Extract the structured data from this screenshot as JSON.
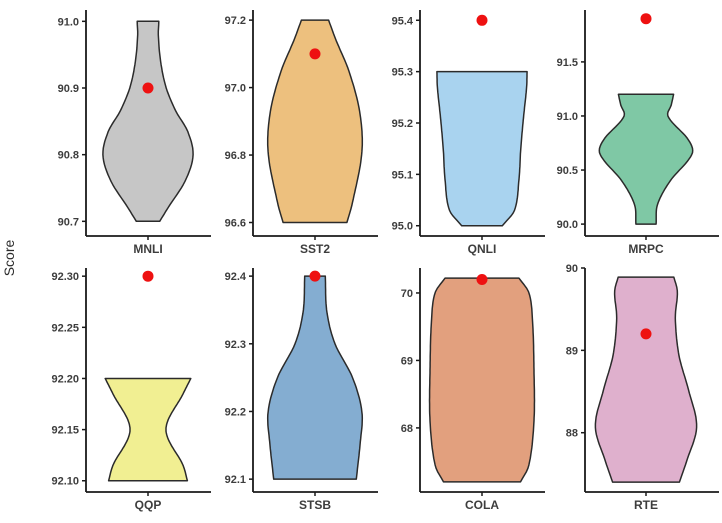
{
  "figure": {
    "ylabel": "Score",
    "dot_color": "#ee1111",
    "axis_color": "#1a1a1a",
    "violin_stroke": "#2b2b2b",
    "text_color": "#3d3d3d",
    "background": "#ffffff"
  },
  "chart_data": {
    "type": "violin",
    "title": "",
    "xlabel": "",
    "ylabel": "Score",
    "legend": "none",
    "grid": false,
    "layout": "2 rows x 4 columns, free y-scales per panel",
    "categories": [
      "MNLI",
      "SST2",
      "QNLI",
      "MRPC",
      "QQP",
      "STSB",
      "COLA",
      "RTE"
    ],
    "dot_values": [
      90.9,
      97.1,
      95.4,
      91.9,
      92.3,
      92.4,
      70.2,
      89.2
    ],
    "panels": [
      {
        "task": "MNLI",
        "color": "#c6c6c6",
        "domain": [
          90.678,
          91.017
        ],
        "ticks": [
          {
            "value": 91.0,
            "label": "91.0"
          },
          {
            "value": 90.9,
            "label": "90.9"
          },
          {
            "value": 90.8,
            "label": "90.8"
          },
          {
            "value": 90.7,
            "label": "90.7"
          }
        ],
        "violin_range": [
          90.7,
          91.0
        ],
        "profile": [
          [
            0,
            0.26
          ],
          [
            0.07,
            0.45
          ],
          [
            0.2,
            0.82
          ],
          [
            0.33,
            1.0
          ],
          [
            0.45,
            0.88
          ],
          [
            0.55,
            0.62
          ],
          [
            0.67,
            0.4
          ],
          [
            0.8,
            0.28
          ],
          [
            0.93,
            0.23
          ],
          [
            1,
            0.24
          ]
        ],
        "relative_width": 0.98,
        "dot_value": 90.9
      },
      {
        "task": "SST2",
        "color": "#edc07e",
        "domain": [
          96.56,
          97.23
        ],
        "ticks": [
          {
            "value": 97.2,
            "label": "97.2"
          },
          {
            "value": 97.0,
            "label": "97.0"
          },
          {
            "value": 96.8,
            "label": "96.8"
          },
          {
            "value": 96.6,
            "label": "96.6"
          }
        ],
        "violin_range": [
          96.6,
          97.2
        ],
        "profile": [
          [
            0,
            0.68
          ],
          [
            0.1,
            0.8
          ],
          [
            0.35,
            1.0
          ],
          [
            0.55,
            0.95
          ],
          [
            0.75,
            0.72
          ],
          [
            0.9,
            0.45
          ],
          [
            1,
            0.29
          ]
        ],
        "relative_width": 1.02,
        "dot_value": 97.1
      },
      {
        "task": "QNLI",
        "color": "#a9d3ef",
        "domain": [
          94.98,
          95.42
        ],
        "ticks": [
          {
            "value": 95.4,
            "label": "95.4"
          },
          {
            "value": 95.3,
            "label": "95.3"
          },
          {
            "value": 95.2,
            "label": "95.2"
          },
          {
            "value": 95.1,
            "label": "95.1"
          },
          {
            "value": 95.0,
            "label": "95.0"
          }
        ],
        "violin_range": [
          95.0,
          95.3
        ],
        "profile": [
          [
            0,
            0.45
          ],
          [
            0.1,
            0.72
          ],
          [
            0.3,
            0.82
          ],
          [
            0.5,
            0.86
          ],
          [
            0.7,
            0.92
          ],
          [
            0.9,
            0.99
          ],
          [
            1,
            1.0
          ]
        ],
        "relative_width": 0.98,
        "dot_value": 95.4
      },
      {
        "task": "MRPC",
        "color": "#7fc8a5",
        "domain": [
          89.89,
          91.98
        ],
        "ticks": [
          {
            "value": 91.5,
            "label": "91.5"
          },
          {
            "value": 91.0,
            "label": "91.0"
          },
          {
            "value": 90.5,
            "label": "90.5"
          },
          {
            "value": 90.0,
            "label": "90.0"
          }
        ],
        "violin_range": [
          90.0,
          91.2
        ],
        "profile": [
          [
            0,
            0.22
          ],
          [
            0.15,
            0.25
          ],
          [
            0.33,
            0.52
          ],
          [
            0.54,
            1.0
          ],
          [
            0.65,
            0.92
          ],
          [
            0.83,
            0.48
          ],
          [
            0.92,
            0.55
          ],
          [
            1,
            0.6
          ]
        ],
        "relative_width": 1.0,
        "dot_value": 91.9
      },
      {
        "task": "QQP",
        "color": "#f1ef92",
        "domain": [
          92.089,
          92.308
        ],
        "ticks": [
          {
            "value": 92.3,
            "label": "92.30"
          },
          {
            "value": 92.25,
            "label": "92.25"
          },
          {
            "value": 92.2,
            "label": "92.20"
          },
          {
            "value": 92.15,
            "label": "92.15"
          },
          {
            "value": 92.1,
            "label": "92.10"
          }
        ],
        "violin_range": [
          92.1,
          92.2
        ],
        "profile": [
          [
            0,
            0.92
          ],
          [
            0.15,
            0.82
          ],
          [
            0.5,
            0.42
          ],
          [
            0.85,
            0.82
          ],
          [
            1,
            1.0
          ]
        ],
        "relative_width": 0.93,
        "dot_value": 92.3
      },
      {
        "task": "STSB",
        "color": "#84add1",
        "domain": [
          92.081,
          92.412
        ],
        "ticks": [
          {
            "value": 92.4,
            "label": "92.4"
          },
          {
            "value": 92.3,
            "label": "92.3"
          },
          {
            "value": 92.2,
            "label": "92.2"
          },
          {
            "value": 92.1,
            "label": "92.1"
          }
        ],
        "violin_range": [
          92.1,
          92.4
        ],
        "profile": [
          [
            0,
            0.88
          ],
          [
            0.17,
            0.96
          ],
          [
            0.33,
            1.0
          ],
          [
            0.5,
            0.8
          ],
          [
            0.67,
            0.42
          ],
          [
            0.83,
            0.25
          ],
          [
            1,
            0.22
          ]
        ],
        "relative_width": 1.02,
        "dot_value": 92.4
      },
      {
        "task": "COLA",
        "color": "#e2a07e",
        "domain": [
          67.05,
          70.37
        ],
        "ticks": [
          {
            "value": 70,
            "label": "70"
          },
          {
            "value": 69,
            "label": "69"
          },
          {
            "value": 68,
            "label": "68"
          }
        ],
        "violin_range": [
          67.2,
          70.22
        ],
        "profile": [
          [
            0,
            0.74
          ],
          [
            0.08,
            0.9
          ],
          [
            0.3,
            1.0
          ],
          [
            0.55,
            1.0
          ],
          [
            0.8,
            0.97
          ],
          [
            0.93,
            0.9
          ],
          [
            1,
            0.71
          ]
        ],
        "relative_width": 1.13,
        "dot_value": 70.2
      },
      {
        "task": "RTE",
        "color": "#dfb0cd",
        "domain": [
          87.28,
          90.0
        ],
        "ticks": [
          {
            "value": 90,
            "label": "90"
          },
          {
            "value": 89,
            "label": "89"
          },
          {
            "value": 88,
            "label": "88"
          }
        ],
        "violin_range": [
          87.4,
          89.89
        ],
        "profile": [
          [
            0,
            0.66
          ],
          [
            0.1,
            0.8
          ],
          [
            0.27,
            1.0
          ],
          [
            0.45,
            0.84
          ],
          [
            0.62,
            0.65
          ],
          [
            0.8,
            0.58
          ],
          [
            0.93,
            0.62
          ],
          [
            1,
            0.55
          ]
        ],
        "relative_width": 1.1,
        "dot_value": 89.2
      }
    ]
  }
}
